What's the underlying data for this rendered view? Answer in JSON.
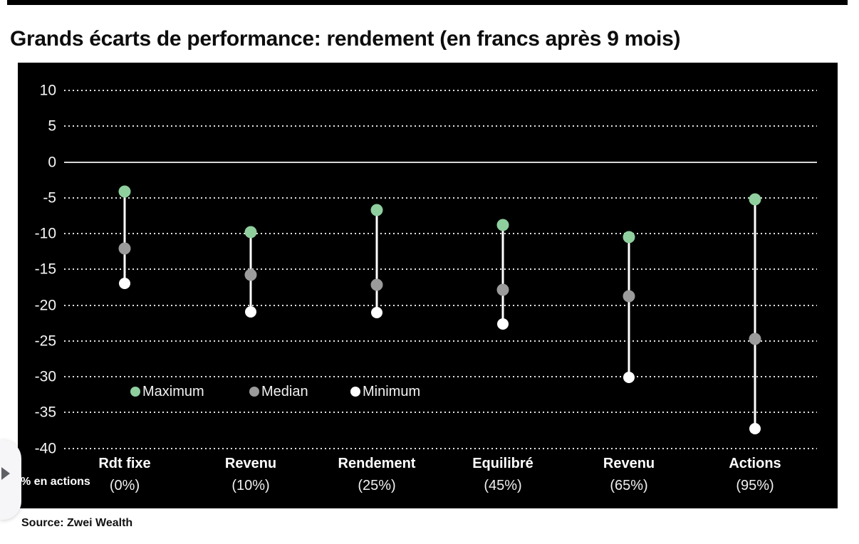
{
  "header": {
    "title": "Grands écarts de performance: rendement (en francs après 9 mois)"
  },
  "source": "Source: Zwei Wealth",
  "axis_note": "% en actions",
  "colors": {
    "maximum": "#8FCF9E",
    "median": "#9B9B9B",
    "minimum": "#FFFFFF",
    "panel_background": "#000000",
    "gridline": "#E2E2E2",
    "zero_line": "#D6D6D6"
  },
  "legend": [
    {
      "label": "Maximum",
      "color": "#8FCF9E"
    },
    {
      "label": "Median",
      "color": "#9B9B9B"
    },
    {
      "label": "Minimum",
      "color": "#FFFFFF"
    }
  ],
  "chart_data": {
    "type": "scatter",
    "subtype": "vertical-range-dot-plot",
    "title": "Grands écarts de performance: rendement (en francs après 9 mois)",
    "categories": [
      "Rdt fixe",
      "Revenu",
      "Rendement",
      "Equilibré",
      "Revenu",
      "Actions"
    ],
    "category_sublabels": [
      "(0%)",
      "(10%)",
      "(25%)",
      "(45%)",
      "(65%)",
      "(95%)"
    ],
    "series": [
      {
        "name": "Maximum",
        "color": "#8FCF9E",
        "values": [
          -4.1,
          -9.8,
          -6.7,
          -8.8,
          -10.5,
          -5.2
        ]
      },
      {
        "name": "Median",
        "color": "#9B9B9B",
        "values": [
          -12.1,
          -15.8,
          -17.2,
          -17.9,
          -18.8,
          -24.7
        ]
      },
      {
        "name": "Minimum",
        "color": "#FFFFFF",
        "values": [
          -17.0,
          -20.9,
          -21.0,
          -22.6,
          -30.1,
          -37.3
        ]
      }
    ],
    "xlabel": "% en actions",
    "ylabel": "",
    "ylim": [
      -40,
      10
    ],
    "yticks": [
      10,
      5,
      0,
      -5,
      -10,
      -15,
      -20,
      -25,
      -30,
      -35,
      -40
    ],
    "grid": "dotted horizontal",
    "zero_line": true,
    "legend_position": "inside lower-left"
  }
}
